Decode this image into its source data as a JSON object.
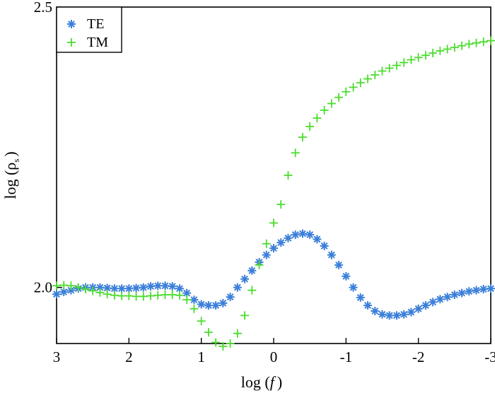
{
  "chart_data": {
    "type": "scatter",
    "xlabel": "log (",
    "xlabel_var": "f",
    "xlabel_close": ")",
    "ylabel": "log (ρ",
    "ylabel_sub": "s",
    "ylabel_close": ")",
    "xlim": [
      3,
      -3
    ],
    "ylim": [
      1.9,
      2.5
    ],
    "x_inverted": true,
    "x_ticks": [
      3,
      2,
      1,
      0,
      -1,
      -2,
      -3
    ],
    "x_tick_labels": [
      "3",
      "2",
      "1",
      "0",
      "-1",
      "-2",
      "-3"
    ],
    "y_ticks": [
      2.0,
      2.5
    ],
    "y_tick_labels": [
      "2.0",
      "2.5"
    ],
    "grid": false,
    "legend_position": "top-left",
    "series": [
      {
        "name": "TE",
        "color": "#3b7fd9",
        "marker": "asterisk",
        "x": [
          3.0,
          2.9,
          2.8,
          2.7,
          2.6,
          2.5,
          2.4,
          2.3,
          2.2,
          2.1,
          2.0,
          1.9,
          1.8,
          1.7,
          1.6,
          1.5,
          1.4,
          1.3,
          1.2,
          1.1,
          1.0,
          0.9,
          0.8,
          0.7,
          0.6,
          0.5,
          0.4,
          0.3,
          0.2,
          0.1,
          0.0,
          -0.1,
          -0.2,
          -0.3,
          -0.4,
          -0.5,
          -0.6,
          -0.7,
          -0.8,
          -0.9,
          -1.0,
          -1.1,
          -1.2,
          -1.3,
          -1.4,
          -1.5,
          -1.6,
          -1.7,
          -1.8,
          -1.9,
          -2.0,
          -2.1,
          -2.2,
          -2.3,
          -2.4,
          -2.5,
          -2.6,
          -2.7,
          -2.8,
          -2.9,
          -3.0
        ],
        "y": [
          1.988,
          1.992,
          1.995,
          1.998,
          2.0,
          2.0,
          2.0,
          1.999,
          1.998,
          1.998,
          1.998,
          1.999,
          2.0,
          2.002,
          2.003,
          2.003,
          2.002,
          1.998,
          1.99,
          1.978,
          1.97,
          1.968,
          1.968,
          1.972,
          1.983,
          2.0,
          2.015,
          2.03,
          2.045,
          2.058,
          2.07,
          2.08,
          2.088,
          2.094,
          2.096,
          2.094,
          2.086,
          2.074,
          2.058,
          2.04,
          2.02,
          2.0,
          1.982,
          1.968,
          1.958,
          1.952,
          1.95,
          1.95,
          1.952,
          1.956,
          1.962,
          1.968,
          1.974,
          1.979,
          1.983,
          1.987,
          1.99,
          1.993,
          1.995,
          1.997,
          1.998
        ]
      },
      {
        "name": "TM",
        "color": "#4bdc2e",
        "marker": "plus",
        "x": [
          3.0,
          2.9,
          2.8,
          2.7,
          2.6,
          2.5,
          2.4,
          2.3,
          2.2,
          2.1,
          2.0,
          1.9,
          1.8,
          1.7,
          1.6,
          1.5,
          1.4,
          1.3,
          1.2,
          1.1,
          1.0,
          0.9,
          0.8,
          0.7,
          0.6,
          0.5,
          0.4,
          0.3,
          0.2,
          0.1,
          0.0,
          -0.1,
          -0.2,
          -0.3,
          -0.4,
          -0.5,
          -0.6,
          -0.7,
          -0.8,
          -0.9,
          -1.0,
          -1.1,
          -1.2,
          -1.3,
          -1.4,
          -1.5,
          -1.6,
          -1.7,
          -1.8,
          -1.9,
          -2.0,
          -2.1,
          -2.2,
          -2.3,
          -2.4,
          -2.5,
          -2.6,
          -2.7,
          -2.8,
          -2.9,
          -3.0
        ],
        "y": [
          2.003,
          2.004,
          2.003,
          2.0,
          1.997,
          1.994,
          1.991,
          1.988,
          1.986,
          1.985,
          1.985,
          1.984,
          1.984,
          1.985,
          1.986,
          1.987,
          1.987,
          1.986,
          1.978,
          1.962,
          1.94,
          1.92,
          1.902,
          1.895,
          1.9,
          1.918,
          1.95,
          1.995,
          2.04,
          2.078,
          2.115,
          2.148,
          2.2,
          2.24,
          2.268,
          2.287,
          2.302,
          2.316,
          2.328,
          2.339,
          2.349,
          2.357,
          2.365,
          2.372,
          2.379,
          2.386,
          2.391,
          2.396,
          2.401,
          2.406,
          2.41,
          2.414,
          2.418,
          2.422,
          2.425,
          2.428,
          2.431,
          2.434,
          2.436,
          2.438,
          2.44
        ]
      }
    ]
  }
}
